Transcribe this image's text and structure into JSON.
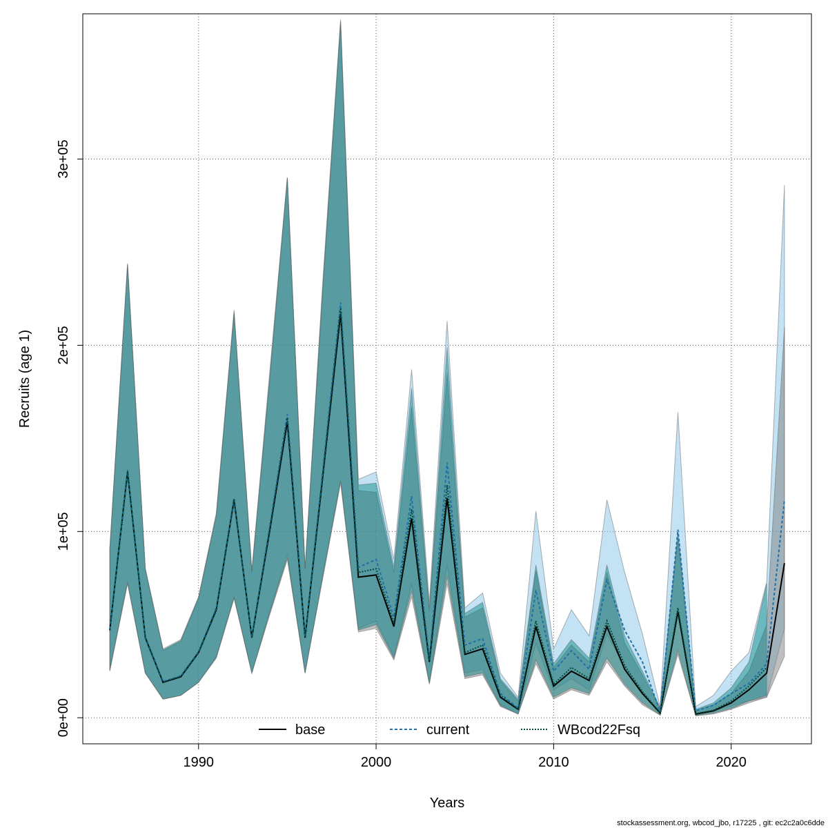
{
  "chart_data": {
    "type": "line",
    "xlabel": "Years",
    "ylabel": "Recruits (age 1)",
    "footnote": "stockassessment.org, wbcod_jbo, r17225 , git: ec2c2a0c6dde",
    "x": [
      1985,
      1986,
      1987,
      1988,
      1989,
      1990,
      1991,
      1992,
      1993,
      1994,
      1995,
      1996,
      1997,
      1998,
      1999,
      2000,
      2001,
      2002,
      2003,
      2004,
      2005,
      2006,
      2007,
      2008,
      2009,
      2010,
      2011,
      2012,
      2013,
      2014,
      2015,
      2016,
      2017,
      2018,
      2019,
      2020,
      2021,
      2022,
      2023
    ],
    "xlim": [
      1983.48,
      2024.52
    ],
    "xticks": [
      1990,
      2000,
      2010,
      2020
    ],
    "ylim": [
      -14000,
      378000
    ],
    "yticks": [
      {
        "value": 0,
        "label": "0e+00"
      },
      {
        "value": 100000,
        "label": "1e+05"
      },
      {
        "value": 200000,
        "label": "2e+05"
      },
      {
        "value": 300000,
        "label": "3e+05"
      }
    ],
    "grid": true,
    "legend": "bottom",
    "series": [
      {
        "name": "base",
        "color": "#000000",
        "band_color": "rgba(128,128,128,0.5)",
        "values": [
          47000,
          132000,
          43000,
          19000,
          22000,
          35000,
          58000,
          117000,
          43000,
          100000,
          159000,
          43000,
          130000,
          217000,
          75500,
          76700,
          49000,
          107000,
          30000,
          118000,
          34000,
          37000,
          11000,
          4500,
          49000,
          17000,
          25000,
          20000,
          49000,
          26000,
          13000,
          2600,
          57000,
          2000,
          3700,
          8000,
          15000,
          24000,
          83000
        ],
        "lower": [
          25000,
          72000,
          24000,
          10000,
          12000,
          19000,
          32000,
          64000,
          24000,
          55000,
          85000,
          24000,
          75000,
          126000,
          46000,
          48000,
          31000,
          65000,
          18000,
          72000,
          21000,
          23000,
          6000,
          2000,
          29000,
          10000,
          15000,
          12000,
          30000,
          17000,
          7000,
          1400,
          34000,
          1000,
          2000,
          4500,
          8000,
          11000,
          33000
        ],
        "upper": [
          90000,
          243000,
          80000,
          36000,
          41000,
          64000,
          108000,
          217000,
          78000,
          180000,
          290000,
          80000,
          230000,
          373000,
          122000,
          121000,
          78000,
          167000,
          57000,
          185000,
          54000,
          59000,
          20000,
          9000,
          79000,
          27000,
          39000,
          30000,
          78000,
          40000,
          23000,
          5000,
          96000,
          4000,
          7000,
          13000,
          25000,
          50000,
          210000
        ]
      },
      {
        "name": "current",
        "color": "#1f6fa8",
        "band_color": "rgba(135,200,235,0.5)",
        "values": [
          47500,
          133000,
          43500,
          19500,
          22500,
          35500,
          59000,
          118000,
          43500,
          102000,
          163000,
          43500,
          133000,
          223000,
          80700,
          85000,
          54000,
          119000,
          31000,
          137000,
          39000,
          42500,
          13000,
          5000,
          68500,
          25000,
          36000,
          26000,
          74000,
          47000,
          30000,
          3000,
          101000,
          3700,
          6700,
          13000,
          18500,
          29000,
          117000
        ],
        "lower": [
          26000,
          73000,
          24000,
          10000,
          12000,
          19000,
          33000,
          65000,
          24000,
          57000,
          88000,
          24000,
          77000,
          128000,
          48000,
          52000,
          33000,
          72000,
          19000,
          82000,
          24000,
          26000,
          7000,
          2000,
          40000,
          15000,
          21000,
          15000,
          45000,
          27000,
          14000,
          1500,
          57000,
          1500,
          3500,
          6500,
          9000,
          11000,
          48000
        ],
        "upper": [
          91000,
          244000,
          80000,
          37000,
          42000,
          65000,
          110000,
          219000,
          79000,
          185000,
          290000,
          80000,
          235000,
          375000,
          128000,
          132000,
          85000,
          187000,
          62000,
          213000,
          59000,
          67000,
          24000,
          11000,
          111000,
          37000,
          58000,
          44000,
          117000,
          78000,
          45000,
          6000,
          164000,
          6000,
          12000,
          25000,
          35000,
          73000,
          286000
        ]
      },
      {
        "name": "WBcod22Fsq",
        "color": "#004d40",
        "band_color": "rgba(0,130,130,0.45)",
        "values": [
          47200,
          132500,
          43200,
          19200,
          22200,
          35200,
          58500,
          117500,
          43200,
          101000,
          161000,
          43200,
          131000,
          220000,
          78000,
          80000,
          51000,
          112000,
          30500,
          125000,
          35000,
          39000,
          12000,
          4700,
          52000,
          18000,
          27000,
          21000,
          52000,
          28000,
          14000,
          2700,
          59000,
          2200,
          4000,
          9000,
          17000,
          27000,
          null
        ],
        "lower": [
          25500,
          72500,
          24000,
          10000,
          12000,
          19000,
          32500,
          64500,
          24000,
          56000,
          86000,
          24000,
          76000,
          127000,
          47000,
          50000,
          32000,
          68000,
          18500,
          76000,
          22000,
          24000,
          6500,
          2000,
          31000,
          11000,
          16000,
          13000,
          32000,
          18000,
          8000,
          1400,
          36000,
          1200,
          2500,
          5000,
          9000,
          12000,
          null
        ],
        "upper": [
          90500,
          243500,
          80000,
          36500,
          41500,
          64500,
          109000,
          218000,
          78500,
          182000,
          290000,
          80000,
          232000,
          374000,
          125000,
          126000,
          81000,
          177000,
          59000,
          199000,
          56000,
          62000,
          21000,
          10000,
          82000,
          29000,
          42000,
          32000,
          82000,
          44000,
          25000,
          5500,
          100000,
          4500,
          8000,
          16000,
          30000,
          72000,
          null
        ]
      }
    ]
  }
}
